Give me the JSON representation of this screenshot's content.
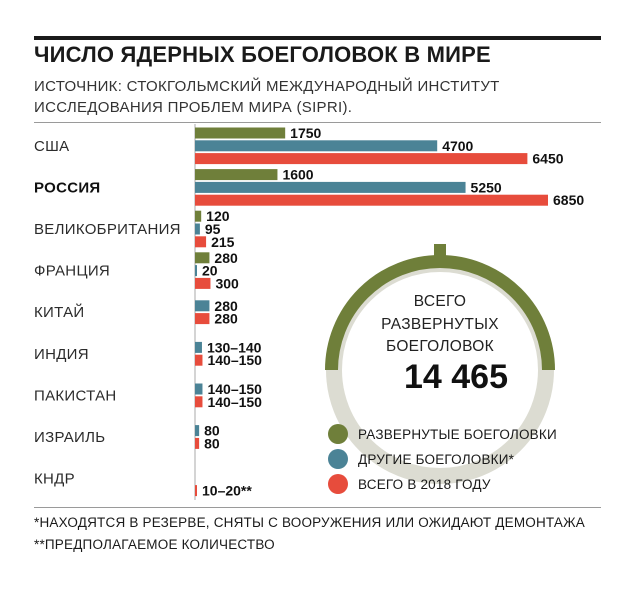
{
  "header": {
    "title": "ЧИСЛО ЯДЕРНЫХ БОЕГОЛОВОК В МИРЕ",
    "source_line1": "ИСТОЧНИК: СТОКГОЛЬМСКИЙ МЕЖДУНАРОДНЫЙ ИНСТИТУТ",
    "source_line2": "ИССЛЕДОВАНИЯ ПРОБЛЕМ МИРА (SIPRI)."
  },
  "summary": {
    "line1": "ВСЕГО",
    "line2": "РАЗВЕРНУТЫХ",
    "line3": "БОЕГОЛОВОК",
    "value": "14 465",
    "numeric_value": 14465
  },
  "legend": [
    {
      "label": "РАЗВЕРНУТЫЕ БОЕГОЛОВКИ",
      "color": "#6f7f3a"
    },
    {
      "label": "ДРУГИЕ БОЕГОЛОВКИ*",
      "color": "#4b8396"
    },
    {
      "label": "ВСЕГО В 2018 ГОДУ",
      "color": "#e74c3c"
    }
  ],
  "footnotes": {
    "note1": "*НАХОДЯТСЯ В РЕЗЕРВЕ, СНЯТЫ С ВООРУЖЕНИЯ ИЛИ ОЖИДАЮТ ДЕМОНТАЖА",
    "note2": "**ПРЕДПОЛАГАЕМОЕ КОЛИЧЕСТВО"
  },
  "colors": {
    "deployed": "#6f7f3a",
    "other": "#4b8396",
    "total": "#e74c3c",
    "ring": "#dcdcd2",
    "marker": "#6f7f3a"
  },
  "chart_data": {
    "type": "bar",
    "orientation": "horizontal",
    "title": "ЧИСЛО ЯДЕРНЫХ БОЕГОЛОВОК В МИРЕ",
    "categories": [
      "США",
      "РОССИЯ",
      "ВЕЛИКОБРИТАНИЯ",
      "ФРАНЦИЯ",
      "КИТАЙ",
      "ИНДИЯ",
      "ПАКИСТАН",
      "ИЗРАИЛЬ",
      "КНДР"
    ],
    "bold_categories": [
      "РОССИЯ"
    ],
    "series": [
      {
        "name": "РАЗВЕРНУТЫЕ БОЕГОЛОВКИ",
        "color": "#6f7f3a",
        "values": [
          1750,
          1600,
          120,
          280,
          null,
          null,
          null,
          null,
          null
        ],
        "labels": [
          "1750",
          "1600",
          "120",
          "280",
          null,
          null,
          null,
          null,
          null
        ]
      },
      {
        "name": "ДРУГИЕ БОЕГОЛОВКИ*",
        "color": "#4b8396",
        "values": [
          4700,
          5250,
          95,
          20,
          280,
          135,
          145,
          80,
          null
        ],
        "labels": [
          "4700",
          "5250",
          "95",
          "20",
          "280",
          "130–140",
          "140–150",
          "80",
          null
        ]
      },
      {
        "name": "ВСЕГО В 2018 ГОДУ",
        "color": "#e74c3c",
        "values": [
          6450,
          6850,
          215,
          300,
          280,
          145,
          145,
          80,
          15
        ],
        "labels": [
          "6450",
          "6850",
          "215",
          "300",
          "280",
          "140–150",
          "140–150",
          "80",
          "10–20**"
        ]
      }
    ],
    "xlim": [
      0,
      6850
    ],
    "grid": false,
    "legend_position": "right"
  }
}
